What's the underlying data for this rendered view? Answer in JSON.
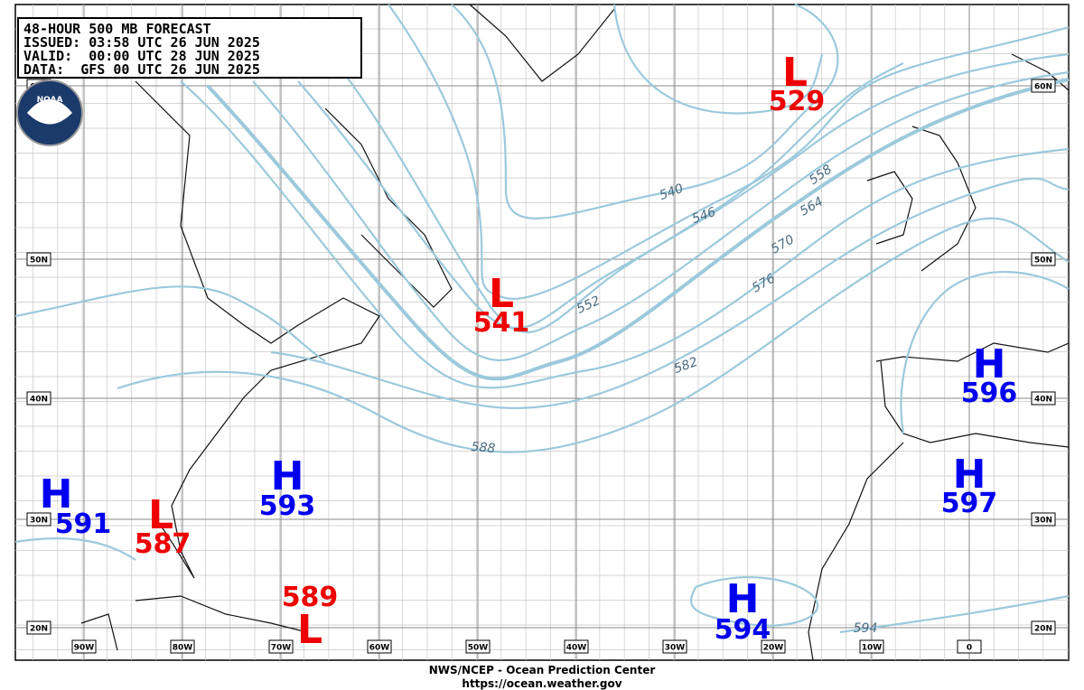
{
  "header": {
    "lines": [
      "48-HOUR 500 MB FORECAST",
      "ISSUED: 03:58 UTC 26 JUN 2025",
      "VALID:  00:00 UTC 28 JUN 2025",
      "DATA:  GFS 00 UTC 26 JUN 2025"
    ]
  },
  "logo": "NOAA",
  "latitude_labels": [
    "60N",
    "50N",
    "40N",
    "30N",
    "20N"
  ],
  "longitude_labels": [
    "90W",
    "80W",
    "70W",
    "60W",
    "50W",
    "40W",
    "30W",
    "20W",
    "10W",
    "0"
  ],
  "contour_labels": [
    "540",
    "546",
    "552",
    "558",
    "564",
    "570",
    "576",
    "582",
    "588",
    "594"
  ],
  "pressure_centers": [
    {
      "symbol": "H",
      "value": "591"
    },
    {
      "symbol": "L",
      "value": "587"
    },
    {
      "symbol": "H",
      "value": "593"
    },
    {
      "symbol": "L",
      "value": "589"
    },
    {
      "symbol": "L",
      "value": "541"
    },
    {
      "symbol": "L",
      "value": "529"
    },
    {
      "symbol": "H",
      "value": "596"
    },
    {
      "symbol": "H",
      "value": "597"
    },
    {
      "symbol": "H",
      "value": "594"
    }
  ],
  "footer": {
    "agency": "NWS/NCEP - Ocean Prediction Center",
    "url": "https://ocean.weather.gov"
  }
}
